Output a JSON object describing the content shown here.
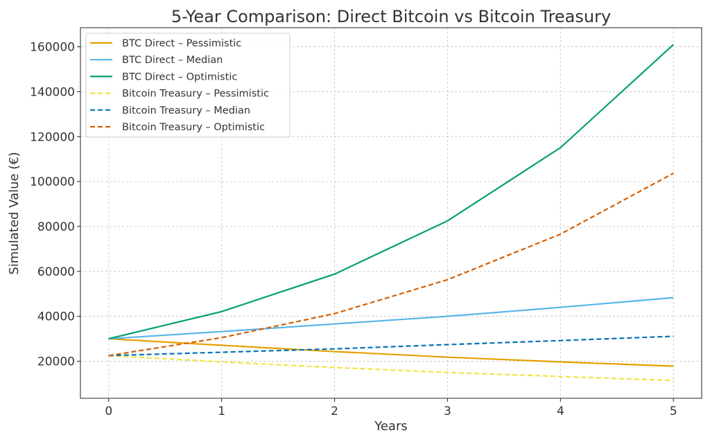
{
  "chart_data": {
    "type": "line",
    "title": "5-Year Comparison: Direct Bitcoin vs Bitcoin Treasury",
    "xlabel": "Years",
    "ylabel": "Simulated Value (€)",
    "x": [
      0,
      1,
      2,
      3,
      4,
      5
    ],
    "xticks": [
      "0",
      "1",
      "2",
      "3",
      "4",
      "5"
    ],
    "yticks": [
      "20000",
      "40000",
      "60000",
      "80000",
      "100000",
      "120000",
      "140000",
      "160000"
    ],
    "xlim": [
      -0.25,
      5.25
    ],
    "ylim": [
      3500,
      168500
    ],
    "grid": true,
    "legend_position": "top-left",
    "series": [
      {
        "name": "BTC Direct – Pessimistic",
        "color": "#E69F00",
        "dash": false,
        "values": [
          30000,
          27100,
          24300,
          21800,
          19700,
          17800
        ]
      },
      {
        "name": "BTC Direct – Median",
        "color": "#56B4E9",
        "dash": false,
        "values": [
          30000,
          33200,
          36600,
          40000,
          44000,
          48300
        ]
      },
      {
        "name": "BTC Direct – Optimistic",
        "color": "#009E73",
        "dash": false,
        "values": [
          30000,
          42100,
          58800,
          82500,
          115100,
          161000
        ]
      },
      {
        "name": "Bitcoin Treasury – Pessimistic",
        "color": "#F0E442",
        "dash": true,
        "values": [
          22500,
          19700,
          17200,
          15000,
          13200,
          11400
        ]
      },
      {
        "name": "Bitcoin Treasury – Median",
        "color": "#0072B2",
        "dash": true,
        "values": [
          22500,
          24000,
          25500,
          27400,
          29200,
          31100
        ]
      },
      {
        "name": "Bitcoin Treasury – Optimistic",
        "color": "#D55E00",
        "dash": true,
        "values": [
          22500,
          30500,
          41200,
          56300,
          76600,
          103700
        ]
      }
    ]
  }
}
